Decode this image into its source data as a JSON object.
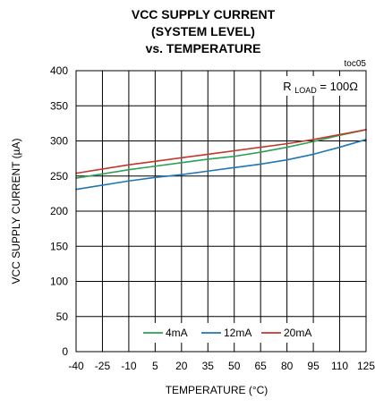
{
  "chart_data": {
    "type": "line",
    "title_lines": [
      "VCC SUPPLY CURRENT",
      "(SYSTEM LEVEL)",
      "vs. TEMPERATURE"
    ],
    "figure_id": "toc05",
    "xlabel": "TEMPERATURE (°C)",
    "ylabel": "VCC SUPPLY CURRENT (µA)",
    "xlim": [
      -40,
      125
    ],
    "ylim": [
      0,
      400
    ],
    "x_ticks": [
      -40,
      -25,
      -10,
      5,
      20,
      35,
      50,
      65,
      80,
      95,
      110,
      125
    ],
    "y_ticks": [
      0,
      50,
      100,
      150,
      200,
      250,
      300,
      350,
      400
    ],
    "grid": true,
    "annotation": {
      "prefix": "R",
      "subscript": "LOAD",
      "suffix": " = 100Ω",
      "placement": "top-right"
    },
    "legend": {
      "placement": "bottom-center"
    },
    "series": [
      {
        "name": "4mA",
        "color": "#2ca05a",
        "x": [
          -40,
          -25,
          -10,
          5,
          20,
          35,
          50,
          65,
          80,
          95,
          110,
          125
        ],
        "y": [
          247,
          253,
          259,
          264,
          269,
          274,
          278,
          284,
          291,
          299,
          308,
          316
        ]
      },
      {
        "name": "12mA",
        "color": "#1f77b4",
        "x": [
          -40,
          -25,
          -10,
          5,
          20,
          35,
          50,
          65,
          80,
          95,
          110,
          125
        ],
        "y": [
          231,
          237,
          243,
          248,
          252,
          257,
          262,
          267,
          273,
          281,
          291,
          302
        ]
      },
      {
        "name": "20mA",
        "color": "#c0392b",
        "x": [
          -40,
          -25,
          -10,
          5,
          20,
          35,
          50,
          65,
          80,
          95,
          110,
          125
        ],
        "y": [
          254,
          260,
          266,
          271,
          276,
          281,
          286,
          291,
          296,
          302,
          309,
          316
        ]
      }
    ]
  }
}
